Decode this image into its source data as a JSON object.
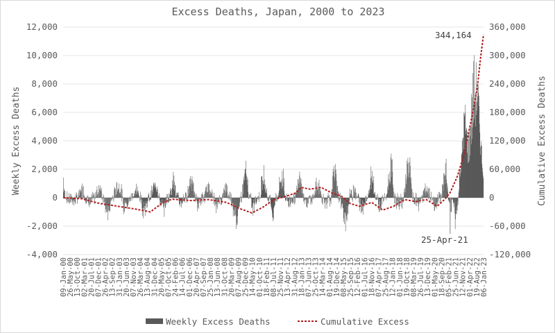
{
  "chart_data": {
    "type": "bar+line",
    "title": "Excess Deaths, Japan, 2000 to 2023",
    "ylabel_left": "Weekly Excess Deaths",
    "ylabel_right": "Cumulative Excess Deaths",
    "ylim_left": [
      -4000,
      12000
    ],
    "ylim_right": [
      -120000,
      360000
    ],
    "yticks_left": [
      "-4,000",
      "-2,000",
      "0",
      "2,000",
      "4,000",
      "6,000",
      "8,000",
      "10,000",
      "12,000"
    ],
    "yticks_right": [
      "-120,000",
      "-60,000",
      "0",
      "60,000",
      "120,000",
      "180,000",
      "240,000",
      "300,000",
      "360,000"
    ],
    "grid": true,
    "legend_position": "bottom",
    "x_tick_labels": [
      "09-Jan-00",
      "26-May-00",
      "13-Oct-00",
      "02-Mar-01",
      "20-Jul-01",
      "07-Dec-01",
      "26-Apr-02",
      "13-Sep-02",
      "31-Jan-03",
      "20-Jun-03",
      "07-Nov-03",
      "26-Mar-04",
      "13-Aug-04",
      "31-Dec-04",
      "20-May-05",
      "07-Oct-05",
      "24-Feb-06",
      "14-Jul-06",
      "01-Dec-06",
      "20-Apr-07",
      "07-Sep-07",
      "25-Jan-08",
      "13-Jun-08",
      "31-Oct-08",
      "20-Mar-09",
      "07-Aug-09",
      "25-Dec-09",
      "14-May-10",
      "01-Oct-10",
      "18-Feb-11",
      "08-Jul-11",
      "25-Nov-11",
      "13-Apr-12",
      "31-Aug-12",
      "18-Jan-13",
      "07-Jun-13",
      "25-Oct-13",
      "14-Mar-14",
      "01-Aug-14",
      "19-Dec-14",
      "08-May-15",
      "25-Sep-15",
      "12-Feb-16",
      "01-Jul-16",
      "18-Nov-16",
      "07-Apr-17",
      "25-Aug-17",
      "12-Jan-18",
      "01-Jun-18",
      "19-Oct-18",
      "08-Mar-19",
      "26-Jul-19",
      "13-Dec-19",
      "01-May-20",
      "18-Sep-20",
      "05-Feb-21",
      "25-Jun-21",
      "12-Nov-21",
      "01-Apr-22",
      "19-Aug-22",
      "06-Jan-23"
    ],
    "series": [
      {
        "name": "Weekly Excess Deaths",
        "type": "bar",
        "color": "#595959",
        "weeks_from": "09-Jan-00",
        "weeks_to": "Feb-23",
        "weekly_sample": [
          [
            2000.0,
            1900
          ],
          [
            2000.1,
            -600
          ],
          [
            2000.3,
            700
          ],
          [
            2000.6,
            -500
          ],
          [
            2000.9,
            400
          ],
          [
            2001.1,
            1000
          ],
          [
            2001.4,
            -900
          ],
          [
            2001.8,
            800
          ],
          [
            2002.1,
            900
          ],
          [
            2002.3,
            -1500
          ],
          [
            2002.5,
            -1700
          ],
          [
            2002.8,
            1000
          ],
          [
            2003.1,
            1200
          ],
          [
            2003.3,
            2700
          ],
          [
            2003.5,
            -1300
          ],
          [
            2003.8,
            600
          ],
          [
            2004.1,
            700
          ],
          [
            2004.3,
            -1700
          ],
          [
            2004.5,
            -1200
          ],
          [
            2004.8,
            500
          ],
          [
            2005.0,
            900
          ],
          [
            2005.3,
            -800
          ],
          [
            2005.2,
            3100
          ],
          [
            2005.6,
            -900
          ],
          [
            2005.9,
            700
          ],
          [
            2006.1,
            2200
          ],
          [
            2006.4,
            -700
          ],
          [
            2006.8,
            500
          ],
          [
            2007.1,
            2400
          ],
          [
            2007.4,
            -900
          ],
          [
            2007.8,
            600
          ],
          [
            2008.1,
            1300
          ],
          [
            2008.4,
            -1200
          ],
          [
            2008.7,
            800
          ],
          [
            2009.0,
            900
          ],
          [
            2009.3,
            -1700
          ],
          [
            2009.6,
            -1900
          ],
          [
            2009.9,
            1200
          ],
          [
            2010.1,
            2900
          ],
          [
            2010.4,
            -1500
          ],
          [
            2010.8,
            700
          ],
          [
            2011.1,
            2200
          ],
          [
            2011.2,
            1600
          ],
          [
            2011.5,
            -1700
          ],
          [
            2011.9,
            1300
          ],
          [
            2012.1,
            2500
          ],
          [
            2012.4,
            -800
          ],
          [
            2012.8,
            900
          ],
          [
            2013.1,
            2300
          ],
          [
            2013.4,
            -700
          ],
          [
            2013.8,
            800
          ],
          [
            2014.1,
            1400
          ],
          [
            2014.5,
            -900
          ],
          [
            2014.9,
            3400
          ],
          [
            2015.3,
            -1400
          ],
          [
            2015.7,
            -2500
          ],
          [
            2016.0,
            1200
          ],
          [
            2016.4,
            -1700
          ],
          [
            2016.8,
            900
          ],
          [
            2017.0,
            2300
          ],
          [
            2017.4,
            -1100
          ],
          [
            2017.8,
            800
          ],
          [
            2018.1,
            3300
          ],
          [
            2018.5,
            -900
          ],
          [
            2018.8,
            2700
          ],
          [
            2019.1,
            3400
          ],
          [
            2019.5,
            -1000
          ],
          [
            2019.9,
            900
          ],
          [
            2020.2,
            500
          ],
          [
            2020.5,
            -1000
          ],
          [
            2020.8,
            600
          ],
          [
            2021.1,
            2800
          ],
          [
            2021.3,
            -2200
          ],
          [
            2021.6,
            2500
          ],
          [
            2021.9,
            1800
          ],
          [
            2022.1,
            5800
          ],
          [
            2022.3,
            4000
          ],
          [
            2022.6,
            9500
          ],
          [
            2022.8,
            8100
          ],
          [
            2023.0,
            3500
          ],
          [
            2023.1,
            1600
          ]
        ]
      },
      {
        "name": "Cumulative Excess",
        "type": "line",
        "color": "#b01d1d",
        "points": [
          [
            2000.0,
            0
          ],
          [
            2001.0,
            -2000
          ],
          [
            2002.0,
            -12000
          ],
          [
            2003.0,
            -18000
          ],
          [
            2004.0,
            -24000
          ],
          [
            2004.8,
            -30000
          ],
          [
            2005.5,
            -10000
          ],
          [
            2006.0,
            -3000
          ],
          [
            2007.0,
            -6000
          ],
          [
            2008.0,
            -4000
          ],
          [
            2009.0,
            -10000
          ],
          [
            2009.8,
            -24000
          ],
          [
            2010.4,
            -32000
          ],
          [
            2011.0,
            -20000
          ],
          [
            2011.6,
            -4000
          ],
          [
            2012.2,
            2000
          ],
          [
            2012.8,
            10000
          ],
          [
            2013.1,
            22000
          ],
          [
            2013.6,
            18000
          ],
          [
            2014.2,
            22000
          ],
          [
            2014.8,
            10000
          ],
          [
            2015.3,
            4000
          ],
          [
            2015.8,
            -12000
          ],
          [
            2016.3,
            -18000
          ],
          [
            2017.0,
            -10000
          ],
          [
            2017.6,
            -26000
          ],
          [
            2018.2,
            -18000
          ],
          [
            2018.8,
            -4000
          ],
          [
            2019.4,
            -8000
          ],
          [
            2020.0,
            -4000
          ],
          [
            2020.6,
            -18000
          ],
          [
            2021.0,
            -4000
          ],
          [
            2021.3,
            10000
          ],
          [
            2021.7,
            44000
          ],
          [
            2022.1,
            94000
          ],
          [
            2022.5,
            170000
          ],
          [
            2022.8,
            230000
          ],
          [
            2023.0,
            300000
          ],
          [
            2023.15,
            344164
          ]
        ]
      }
    ],
    "annotations": [
      "344,164",
      "25-Apr-21"
    ],
    "legend": [
      "Weekly Excess Deaths",
      "Cumulative Excess"
    ]
  }
}
